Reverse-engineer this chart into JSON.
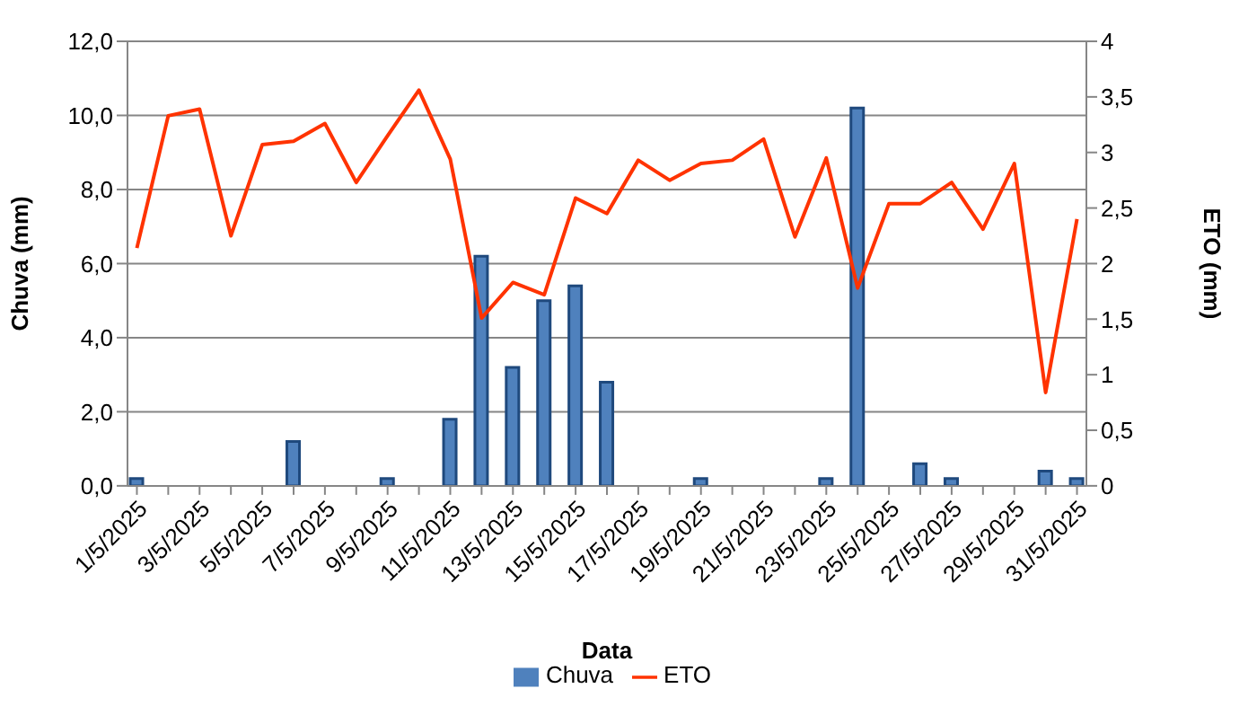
{
  "chart_data": {
    "type": "bar",
    "xlabel": "Data",
    "ylabel": "Chuva (mm)",
    "y2label": "ETO (mm)",
    "categories": [
      "1/5/2025",
      null,
      "3/5/2025",
      null,
      "5/5/2025",
      null,
      "7/5/2025",
      null,
      "9/5/2025",
      null,
      "11/5/2025",
      null,
      "13/5/2025",
      null,
      "15/5/2025",
      null,
      "17/5/2025",
      null,
      "19/5/2025",
      null,
      "21/5/2025",
      null,
      "23/5/2025",
      null,
      "25/5/2025",
      null,
      "27/5/2025",
      null,
      "29/5/2025",
      null,
      "31/5/2025"
    ],
    "series": [
      {
        "name": "Chuva",
        "color": "#4f81bd",
        "values": [
          0.2,
          0,
          0,
          0,
          0,
          1.2,
          0,
          0,
          0.2,
          0,
          1.8,
          6.2,
          3.2,
          5.0,
          5.4,
          2.8,
          0,
          0,
          0.2,
          0,
          0,
          0,
          0.2,
          10.2,
          0,
          0.6,
          0.2,
          0,
          0,
          0.4,
          0.2
        ]
      },
      {
        "name": "ETO",
        "type": "line",
        "axis": "y2",
        "color": "#ff3300",
        "marker": "none",
        "values": [
          2.14,
          3.33,
          3.39,
          2.25,
          3.07,
          3.1,
          3.26,
          2.73,
          3.15,
          3.56,
          2.94,
          1.51,
          1.83,
          1.72,
          2.59,
          2.45,
          2.93,
          2.75,
          2.9,
          2.93,
          3.12,
          2.24,
          2.95,
          1.78,
          2.54,
          2.54,
          2.73,
          2.31,
          2.9,
          0.84,
          2.4
        ]
      }
    ],
    "ylim": [
      0,
      12
    ],
    "yticks": [
      {
        "value": 0,
        "label": "0,0"
      },
      {
        "value": 2,
        "label": "2,0"
      },
      {
        "value": 4,
        "label": "4,0"
      },
      {
        "value": 6,
        "label": "6,0"
      },
      {
        "value": 8,
        "label": "8,0"
      },
      {
        "value": 10,
        "label": "10,0"
      },
      {
        "value": 12,
        "label": "12,0"
      }
    ],
    "y2lim": [
      0,
      4
    ],
    "y2ticks": [
      0,
      {
        "value": 0.5,
        "label": "0,5"
      },
      1,
      {
        "value": 1.5,
        "label": "1,5"
      },
      2,
      {
        "value": 2.5,
        "label": "2,5"
      },
      3,
      {
        "value": 3.5,
        "label": "3,5"
      },
      4
    ],
    "grid": "y",
    "legend": "bottom"
  }
}
